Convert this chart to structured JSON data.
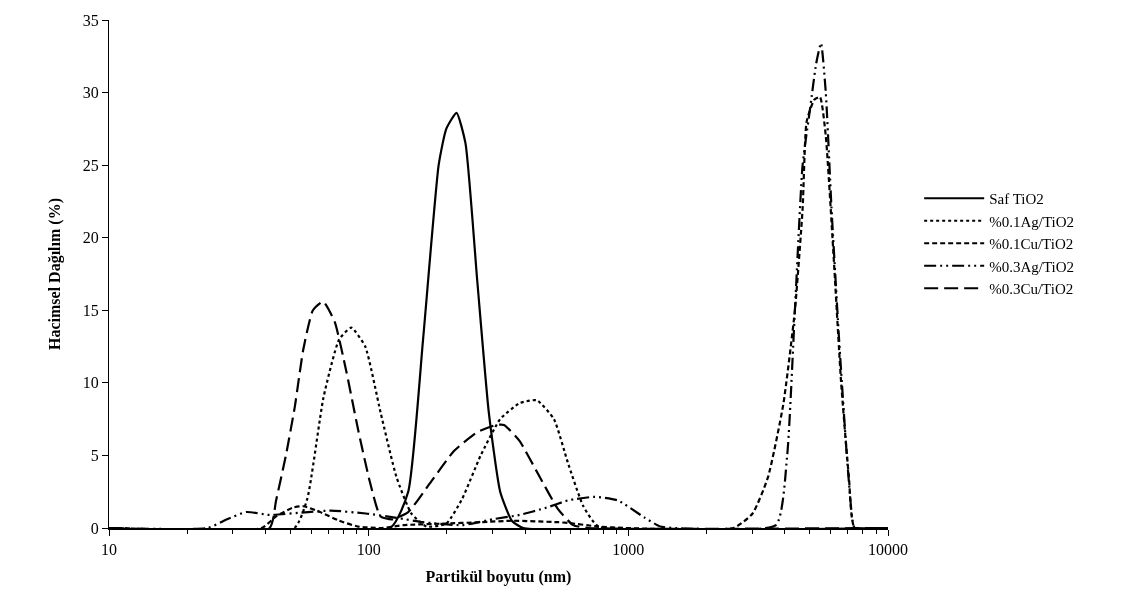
{
  "chart_data": {
    "type": "line",
    "xlabel": "Partikül boyutu (nm)",
    "ylabel": "Hacimsel Dağılım (%)",
    "log": "x",
    "xlim": [
      10,
      10000
    ],
    "xticks": [
      10,
      100,
      1000,
      10000
    ],
    "ylim": [
      0,
      35
    ],
    "yticks": [
      0,
      5,
      10,
      15,
      20,
      25,
      30,
      35
    ],
    "legend": "right",
    "marker": "none",
    "series": [
      {
        "name": "Saf TiO2",
        "color": "#000000",
        "line_style": "solid",
        "x": [
          10,
          121,
          142,
          162,
          186,
          199,
          218,
          236,
          262,
          290,
          321,
          356,
          394,
          10000
        ],
        "values": [
          0,
          0,
          2.5,
          13,
          25,
          27.5,
          28.6,
          26.5,
          17,
          8,
          2.5,
          0.5,
          0,
          0
        ]
      },
      {
        "name": "%0.1Ag/TiO2",
        "color": "#000000",
        "line_style": "dotted",
        "x": [
          10,
          51.7,
          58,
          67,
          77,
          85.7,
          97,
          111,
          128,
          146,
          167,
          199,
          229,
          270,
          321,
          381,
          444,
          517,
          585,
          671,
          769,
          10000
        ],
        "values": [
          0,
          0,
          2,
          9,
          13,
          13.8,
          12.5,
          8,
          3.5,
          1,
          0.1,
          0.3,
          2,
          5,
          7.5,
          8.6,
          8.8,
          7.5,
          4.5,
          1.5,
          0.1,
          0
        ]
      },
      {
        "name": "%0.1Cu/TiO2",
        "color": "#000000",
        "line_style": "dashed",
        "x": [
          10,
          38.7,
          44,
          51,
          56,
          65,
          77,
          91,
          112,
          137,
          193,
          270,
          356,
          536,
          585,
          769,
          977,
          2540,
          3010,
          3450,
          3950,
          4380,
          4690,
          4860,
          5200,
          5470,
          5760,
          6160,
          6600,
          7070,
          7450,
          10000
        ],
        "values": [
          0,
          0,
          0.8,
          1.4,
          1.5,
          1.1,
          0.5,
          0.1,
          0,
          0.2,
          0.3,
          0.4,
          0.5,
          0.4,
          0.35,
          0.1,
          0,
          0,
          1,
          3.5,
          8.5,
          15,
          22,
          28,
          29.5,
          29.7,
          27,
          19,
          10,
          3.5,
          0,
          0
        ]
      },
      {
        "name": "%0.3Ag/TiO2",
        "color": "#000000",
        "line_style": "dashdotdot",
        "x": [
          10,
          24,
          28.5,
          33.8,
          41.5,
          58.5,
          71.6,
          97.5,
          128,
          162,
          229,
          300,
          381,
          484,
          585,
          743,
          912,
          1158,
          1327,
          1520,
          3700,
          4090,
          4380,
          4690,
          5020,
          5290,
          5520,
          5760,
          6060,
          6480,
          6940,
          7300,
          7450,
          10000
        ],
        "values": [
          0,
          0,
          0.6,
          1.1,
          0.9,
          1.1,
          1.2,
          1,
          0.7,
          0.4,
          0.2,
          0.6,
          0.9,
          1.4,
          1.9,
          2.15,
          1.9,
          0.7,
          0.1,
          0,
          0.2,
          5,
          15,
          25,
          29,
          32,
          33.4,
          30,
          22,
          13,
          5,
          0.5,
          0,
          0
        ]
      },
      {
        "name": "%0.3Cu/TiO2",
        "color": "#000000",
        "line_style": "longdash",
        "x": [
          10,
          41.5,
          44,
          48,
          52,
          56,
          61,
          66.8,
          74,
          82,
          91,
          101,
          111,
          123,
          142,
          174,
          213,
          262,
          310,
          332,
          381,
          450,
          536,
          613,
          702,
          10000
        ],
        "values": [
          0,
          0,
          1.9,
          5,
          8.4,
          12.3,
          15,
          15.6,
          14.2,
          10.8,
          6.8,
          3.2,
          0.8,
          0.6,
          1.1,
          3.2,
          5.3,
          6.6,
          7.1,
          7.1,
          6,
          3.7,
          1.3,
          0.2,
          0,
          0
        ]
      }
    ]
  }
}
